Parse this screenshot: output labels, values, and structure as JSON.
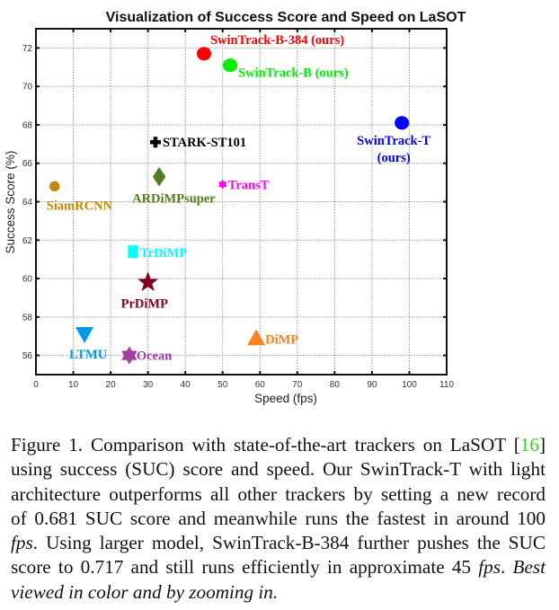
{
  "chart_data": {
    "type": "scatter",
    "title": "Visualization of Success Score and Speed on LaSOT",
    "xlabel": "Speed (fps)",
    "ylabel": "Success Score (%)",
    "xlim": [
      0,
      110
    ],
    "ylim": [
      55,
      73
    ],
    "xticks": [
      0,
      10,
      20,
      30,
      40,
      50,
      60,
      70,
      80,
      90,
      100,
      110
    ],
    "yticks": [
      56,
      58,
      60,
      62,
      64,
      66,
      68,
      70,
      72
    ],
    "grid": true,
    "points": [
      {
        "label": "SwinTrack-B-384 (ours)",
        "x": 45,
        "y": 71.7,
        "marker": "circle",
        "color": "#ff0000"
      },
      {
        "label": "SwinTrack-B (ours)",
        "x": 52,
        "y": 71.1,
        "marker": "circle",
        "color": "#00ee00"
      },
      {
        "label": "SwinTrack-T",
        "label2": "(ours)",
        "x": 98,
        "y": 68.1,
        "marker": "circle",
        "color": "#0000ff"
      },
      {
        "label": "STARK-ST101",
        "x": 32,
        "y": 67.1,
        "marker": "plus",
        "color": "#000000"
      },
      {
        "label": "ARDiMPsuper",
        "x": 33,
        "y": 65.3,
        "marker": "diamond",
        "color": "#4f7f1f"
      },
      {
        "label": "SiamRCNN",
        "x": 5,
        "y": 64.8,
        "marker": "octagon",
        "color": "#c08a00"
      },
      {
        "label": "TransT",
        "x": 50,
        "y": 64.9,
        "marker": "hexagram",
        "color": "#ff00ff"
      },
      {
        "label": "TrDiMP",
        "x": 26,
        "y": 61.4,
        "marker": "square",
        "color": "#00ffff"
      },
      {
        "label": "PrDiMP",
        "x": 30,
        "y": 59.8,
        "marker": "pentagram",
        "color": "#800020"
      },
      {
        "label": "LTMU",
        "x": 13,
        "y": 57.1,
        "marker": "triangle-down",
        "color": "#0099e6"
      },
      {
        "label": "Ocean",
        "x": 25,
        "y": 56.0,
        "marker": "hexagram",
        "color": "#a040a0"
      },
      {
        "label": "DiMP",
        "x": 59,
        "y": 56.9,
        "marker": "triangle-up",
        "color": "#ff8020"
      }
    ]
  },
  "caption": {
    "lines": [
      [
        {
          "t": "Figure 1. Comparison with state-of-the-art trackers on LaSOT ["
        },
        {
          "t": "16",
          "s": "cite"
        },
        {
          "t": "]"
        }
      ],
      [
        {
          "t": "using success (SUC) score and speed. Our SwinTrack-T with light"
        }
      ],
      [
        {
          "t": "architecture outperforms all other trackers by setting a new record"
        }
      ],
      [
        {
          "t": "of 0.681 SUC score and meanwhile runs the fastest in around 100"
        }
      ],
      [
        {
          "t": "fps",
          "s": "it"
        },
        {
          "t": ". Using larger model, SwinTrack-B-384 further pushes the SUC"
        }
      ],
      [
        {
          "t": "score to 0.717 and still runs efficiently in approximate 45 "
        },
        {
          "t": "fps",
          "s": "it"
        },
        {
          "t": ". "
        },
        {
          "t": "Best",
          "s": "it"
        }
      ],
      [
        {
          "t": "viewed in color and by zooming in.",
          "s": "it"
        }
      ]
    ]
  }
}
